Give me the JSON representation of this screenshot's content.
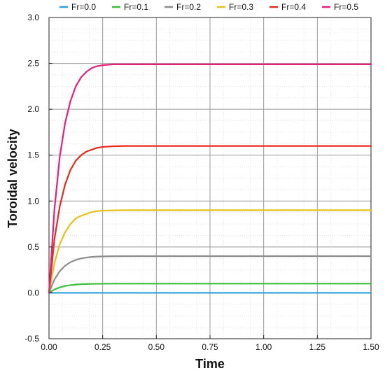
{
  "chart_data": {
    "type": "line",
    "title": "",
    "xlabel": "Time",
    "ylabel": "Toroidal velocity",
    "xlim": [
      0,
      1.5
    ],
    "ylim": [
      -0.5,
      3.0
    ],
    "x_ticks": [
      "0.00",
      "0.25",
      "0.50",
      "0.75",
      "1.00",
      "1.25",
      "1.50"
    ],
    "y_ticks": [
      "-0.5",
      "0.0",
      "0.5",
      "1.0",
      "1.5",
      "2.0",
      "2.5",
      "3.0"
    ],
    "grid": true,
    "legend_position": "top",
    "x": [
      0.0,
      0.025,
      0.05,
      0.075,
      0.1,
      0.125,
      0.15,
      0.175,
      0.2,
      0.225,
      0.25,
      0.3,
      0.35,
      0.4,
      0.45,
      0.5,
      0.6,
      0.7,
      0.8,
      0.9,
      1.0,
      1.1,
      1.2,
      1.3,
      1.4,
      1.5
    ],
    "series": [
      {
        "name": "Fr=0.0",
        "color": "#2a9fe0",
        "values": [
          0,
          0,
          0,
          0,
          0,
          0,
          0,
          0,
          0,
          0,
          0,
          0,
          0,
          0,
          0,
          0,
          0,
          0,
          0,
          0,
          0,
          0,
          0,
          0,
          0,
          0
        ]
      },
      {
        "name": "Fr=0.1",
        "color": "#3cbf3a",
        "values": [
          0.0,
          0.036,
          0.059,
          0.074,
          0.084,
          0.09,
          0.094,
          0.096,
          0.097,
          0.098,
          0.099,
          0.1,
          0.1,
          0.1,
          0.1,
          0.1,
          0.1,
          0.1,
          0.1,
          0.1,
          0.1,
          0.1,
          0.1,
          0.1,
          0.1,
          0.1
        ]
      },
      {
        "name": "Fr=0.2",
        "color": "#8c8c8c",
        "values": [
          0.0,
          0.144,
          0.236,
          0.295,
          0.334,
          0.359,
          0.375,
          0.385,
          0.391,
          0.395,
          0.397,
          0.399,
          0.4,
          0.4,
          0.4,
          0.4,
          0.4,
          0.4,
          0.4,
          0.4,
          0.4,
          0.4,
          0.4,
          0.4,
          0.4,
          0.4
        ]
      },
      {
        "name": "Fr=0.3",
        "color": "#e3c11a",
        "values": [
          0.0,
          0.32,
          0.53,
          0.66,
          0.75,
          0.81,
          0.84,
          0.86,
          0.88,
          0.89,
          0.895,
          0.898,
          0.9,
          0.9,
          0.9,
          0.9,
          0.9,
          0.9,
          0.9,
          0.9,
          0.9,
          0.9,
          0.9,
          0.9,
          0.9,
          0.9
        ]
      },
      {
        "name": "Fr=0.4",
        "color": "#e8291c",
        "values": [
          0.0,
          0.58,
          0.94,
          1.18,
          1.34,
          1.44,
          1.5,
          1.54,
          1.56,
          1.58,
          1.59,
          1.597,
          1.6,
          1.6,
          1.6,
          1.6,
          1.6,
          1.6,
          1.6,
          1.6,
          1.6,
          1.6,
          1.6,
          1.6,
          1.6,
          1.6
        ]
      },
      {
        "name": "Fr=0.5",
        "color": "#e6207a",
        "values": [
          0.0,
          0.9,
          1.48,
          1.85,
          2.09,
          2.25,
          2.35,
          2.41,
          2.45,
          2.47,
          2.48,
          2.49,
          2.49,
          2.49,
          2.49,
          2.49,
          2.49,
          2.49,
          2.49,
          2.49,
          2.49,
          2.49,
          2.49,
          2.49,
          2.49,
          2.49
        ]
      }
    ]
  }
}
